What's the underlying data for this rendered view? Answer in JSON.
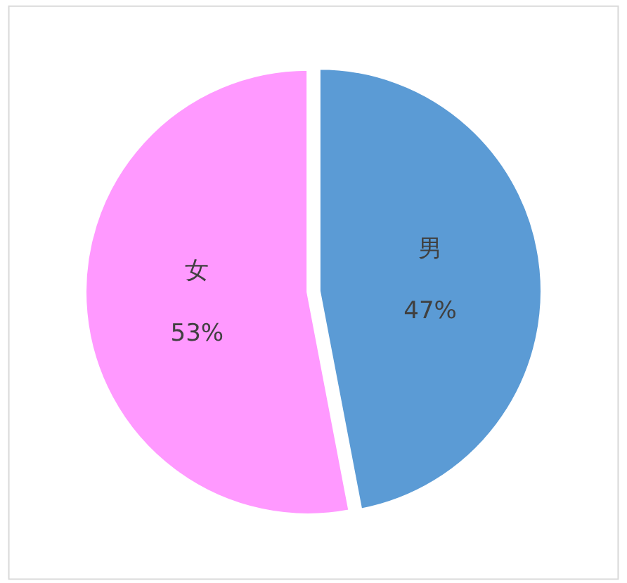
{
  "chart_data": {
    "type": "pie",
    "categories": [
      "男",
      "女"
    ],
    "values": [
      47,
      53
    ],
    "value_labels": [
      "47%",
      "53%"
    ],
    "colors": [
      "#5b9bd5",
      "#ff99ff"
    ],
    "legend": false
  }
}
